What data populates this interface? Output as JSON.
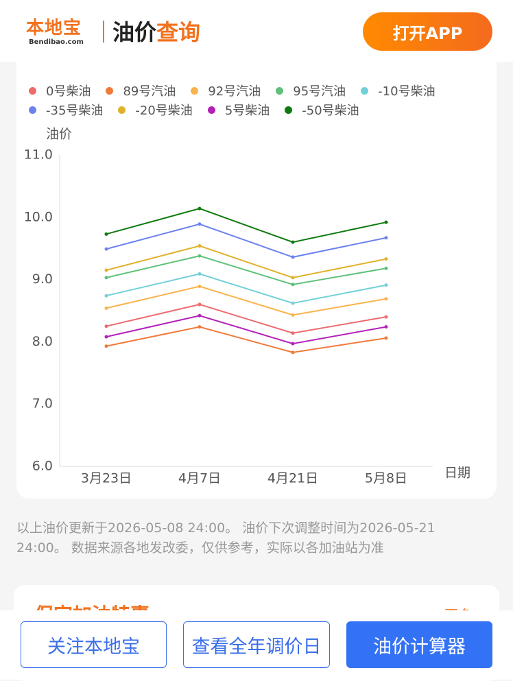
{
  "header": {
    "logo": "本地宝",
    "logo_sub": "Bendibao.com",
    "title_a": "油价",
    "title_b": "查询",
    "open_app": "打开APP"
  },
  "chart_data": {
    "type": "line",
    "y_axis_label": "油价",
    "x_axis_label": "日期",
    "categories": [
      "3月23日",
      "4月7日",
      "4月21日",
      "5月8日"
    ],
    "ylim": [
      6,
      11
    ],
    "yticks": [
      {
        "value": 6,
        "label": "6.0"
      },
      {
        "value": 7,
        "label": "7.0"
      },
      {
        "value": 8,
        "label": "8.0"
      },
      {
        "value": 9,
        "label": "9.0"
      },
      {
        "value": 10,
        "label": "10.0"
      },
      {
        "value": 11,
        "label": "11.0"
      }
    ],
    "grid": false,
    "series": [
      {
        "name": "0号柴油",
        "color": "#ee6b6e",
        "values": [
          8.25,
          8.6,
          8.14,
          8.4
        ]
      },
      {
        "name": "89号汽油",
        "color": "#f07a3a",
        "values": [
          7.93,
          8.24,
          7.83,
          8.06
        ]
      },
      {
        "name": "92号汽油",
        "color": "#f9b34c",
        "values": [
          8.54,
          8.89,
          8.43,
          8.69
        ]
      },
      {
        "name": "95号汽油",
        "color": "#5fc17a",
        "values": [
          9.03,
          9.38,
          8.92,
          9.18
        ]
      },
      {
        "name": "-10号柴油",
        "color": "#73d0d8",
        "values": [
          8.74,
          9.09,
          8.62,
          8.91
        ]
      },
      {
        "name": "-35号柴油",
        "color": "#6b82f0",
        "values": [
          9.49,
          9.89,
          9.36,
          9.67
        ]
      },
      {
        "name": "-20号柴油",
        "color": "#e0b22a",
        "values": [
          9.15,
          9.54,
          9.03,
          9.33
        ]
      },
      {
        "name": "5号柴油",
        "color": "#b322b8",
        "values": [
          8.08,
          8.42,
          7.97,
          8.24
        ]
      },
      {
        "name": "-50号柴油",
        "color": "#0f7a0f",
        "values": [
          9.73,
          10.14,
          9.6,
          9.92
        ]
      }
    ]
  },
  "note": "以上油价更新于2026-05-08 24:00。 油价下次调整时间为2026-05-21 24:00。 数据来源各地发改委，仅供参考，实际以各加油站为准",
  "section": {
    "title": "保定加油特惠",
    "more": "更多"
  },
  "buttons": [
    "关注本地宝",
    "查看全年调价日",
    "油价计算器"
  ]
}
